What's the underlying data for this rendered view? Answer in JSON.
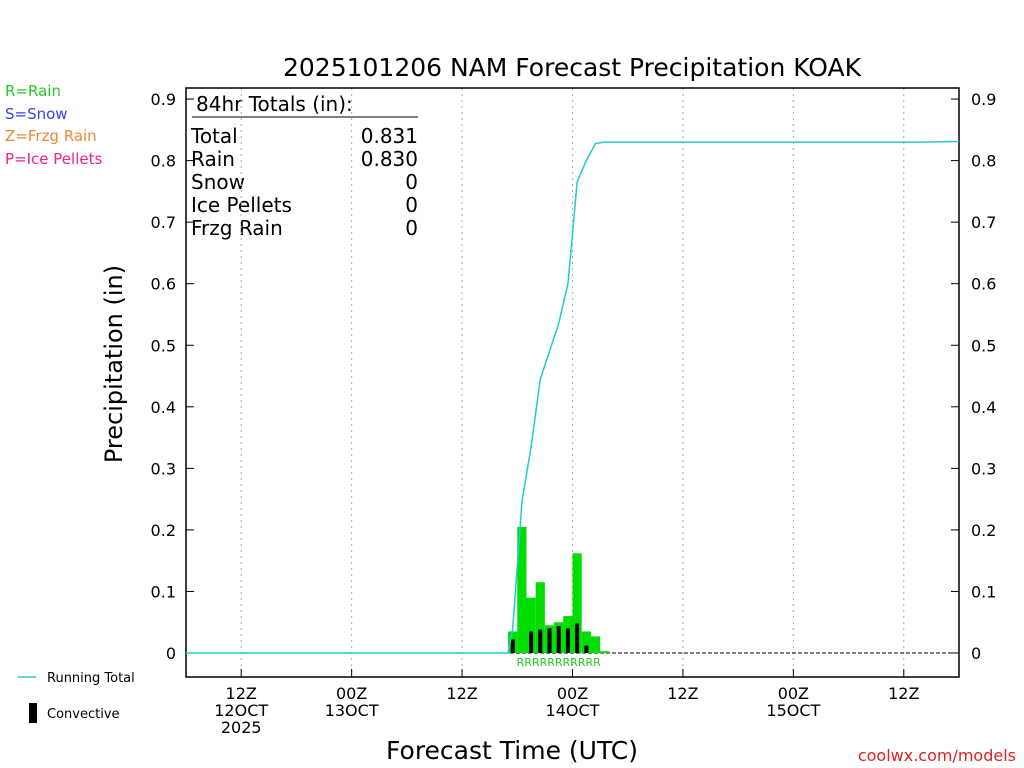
{
  "chart_data": {
    "type": "bar",
    "title": "2025101206 NAM Forecast Precipitation KOAK",
    "xlabel": "Forecast Time (UTC)",
    "ylabel": "Precipitation (in)",
    "ylim": [
      0,
      0.92
    ],
    "xlim_hours_from_start": [
      0,
      84
    ],
    "yticks": [
      "0",
      "0.1",
      "0.2",
      "0.3",
      "0.4",
      "0.5",
      "0.6",
      "0.7",
      "0.8",
      "0.9"
    ],
    "ytick_values": [
      0,
      0.1,
      0.2,
      0.3,
      0.4,
      0.5,
      0.6,
      0.7,
      0.8,
      0.9
    ],
    "xticks": [
      {
        "hour": 6,
        "lines": [
          "12Z",
          "12OCT",
          "2025"
        ]
      },
      {
        "hour": 18,
        "lines": [
          "00Z",
          "13OCT"
        ]
      },
      {
        "hour": 30,
        "lines": [
          "12Z"
        ]
      },
      {
        "hour": 42,
        "lines": [
          "00Z",
          "14OCT"
        ]
      },
      {
        "hour": 54,
        "lines": [
          "12Z"
        ]
      },
      {
        "hour": 66,
        "lines": [
          "00Z",
          "15OCT"
        ]
      },
      {
        "hour": 78,
        "lines": [
          "12Z"
        ]
      }
    ],
    "legend_types": [
      {
        "label": "R=Rain",
        "color": "#22cc22"
      },
      {
        "label": "S=Snow",
        "color": "#3344ee"
      },
      {
        "label": "Z=Frzg Rain",
        "color": "#ee8833"
      },
      {
        "label": "P=Ice Pellets",
        "color": "#ee2288"
      }
    ],
    "series": [
      {
        "name": "Hourly precipitation (Rain)",
        "color": "#00dd00",
        "bars": [
          {
            "hour": 35.5,
            "value": 0.035
          },
          {
            "hour": 36.5,
            "value": 0.205
          },
          {
            "hour": 37.5,
            "value": 0.09
          },
          {
            "hour": 38.5,
            "value": 0.115
          },
          {
            "hour": 39.5,
            "value": 0.045
          },
          {
            "hour": 40.5,
            "value": 0.05
          },
          {
            "hour": 41.5,
            "value": 0.06
          },
          {
            "hour": 42.5,
            "value": 0.162
          },
          {
            "hour": 43.5,
            "value": 0.035
          },
          {
            "hour": 44.5,
            "value": 0.027
          },
          {
            "hour": 45.5,
            "value": 0.003
          }
        ]
      },
      {
        "name": "Convective",
        "color": "#000000",
        "bars": [
          {
            "hour": 35.5,
            "value": 0.022
          },
          {
            "hour": 37.5,
            "value": 0.035
          },
          {
            "hour": 38.5,
            "value": 0.038
          },
          {
            "hour": 39.5,
            "value": 0.04
          },
          {
            "hour": 40.5,
            "value": 0.044
          },
          {
            "hour": 41.5,
            "value": 0.04
          },
          {
            "hour": 42.5,
            "value": 0.048
          },
          {
            "hour": 43.5,
            "value": 0.012
          }
        ]
      },
      {
        "name": "Running Total",
        "color": "#22cccc",
        "points": [
          [
            0,
            0
          ],
          [
            35,
            0
          ],
          [
            35.5,
            0.04
          ],
          [
            36,
            0.14
          ],
          [
            36.5,
            0.245
          ],
          [
            37.5,
            0.335
          ],
          [
            38.5,
            0.445
          ],
          [
            39.5,
            0.49
          ],
          [
            40.5,
            0.535
          ],
          [
            41.5,
            0.6
          ],
          [
            42,
            0.68
          ],
          [
            42.5,
            0.765
          ],
          [
            43.5,
            0.8
          ],
          [
            44.5,
            0.828
          ],
          [
            45.5,
            0.83
          ],
          [
            60,
            0.83
          ],
          [
            80,
            0.83
          ],
          [
            84,
            0.831
          ]
        ]
      }
    ],
    "precip_type_labels": {
      "text": "RRRRRRRRRRR",
      "start_hour": 35,
      "end_hour": 46
    },
    "totals_box": {
      "header": "84hr Totals (in):",
      "rows": [
        {
          "label": "Total",
          "value": "0.831"
        },
        {
          "label": "Rain",
          "value": "0.830"
        },
        {
          "label": "Snow",
          "value": "0"
        },
        {
          "label": "Ice Pellets",
          "value": "0"
        },
        {
          "label": "Frzg Rain",
          "value": "0"
        }
      ]
    },
    "bottom_legend": {
      "running_total_label": "Running Total",
      "convective_label": "Convective"
    },
    "credit": "coolwx.com/models"
  }
}
